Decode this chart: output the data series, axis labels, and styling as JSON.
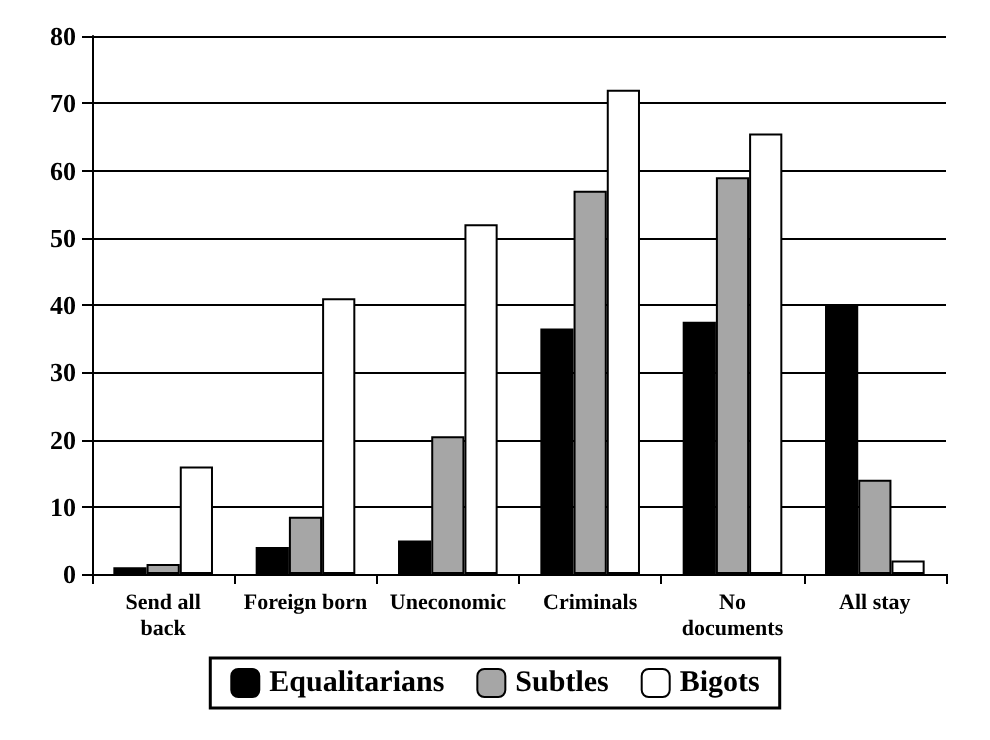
{
  "chart_data": {
    "type": "bar",
    "categories": [
      "Send all\nback",
      "Foreign born",
      "Uneconomic",
      "Criminals",
      "No\ndocuments",
      "All stay"
    ],
    "series": [
      {
        "name": "Equalitarians",
        "color": "#000000",
        "values": [
          1,
          4,
          5,
          36.5,
          37.5,
          40
        ]
      },
      {
        "name": "Subtles",
        "color": "#a6a6a6",
        "values": [
          1.5,
          8.5,
          20.5,
          57,
          59,
          14
        ]
      },
      {
        "name": "Bigots",
        "color": "#ffffff",
        "values": [
          16,
          41,
          52,
          72,
          65.5,
          2
        ]
      }
    ],
    "ylim": [
      0,
      80
    ],
    "yticks": [
      0,
      10,
      20,
      30,
      40,
      50,
      60,
      70,
      80
    ],
    "grid": "y",
    "legend": "bottom"
  }
}
